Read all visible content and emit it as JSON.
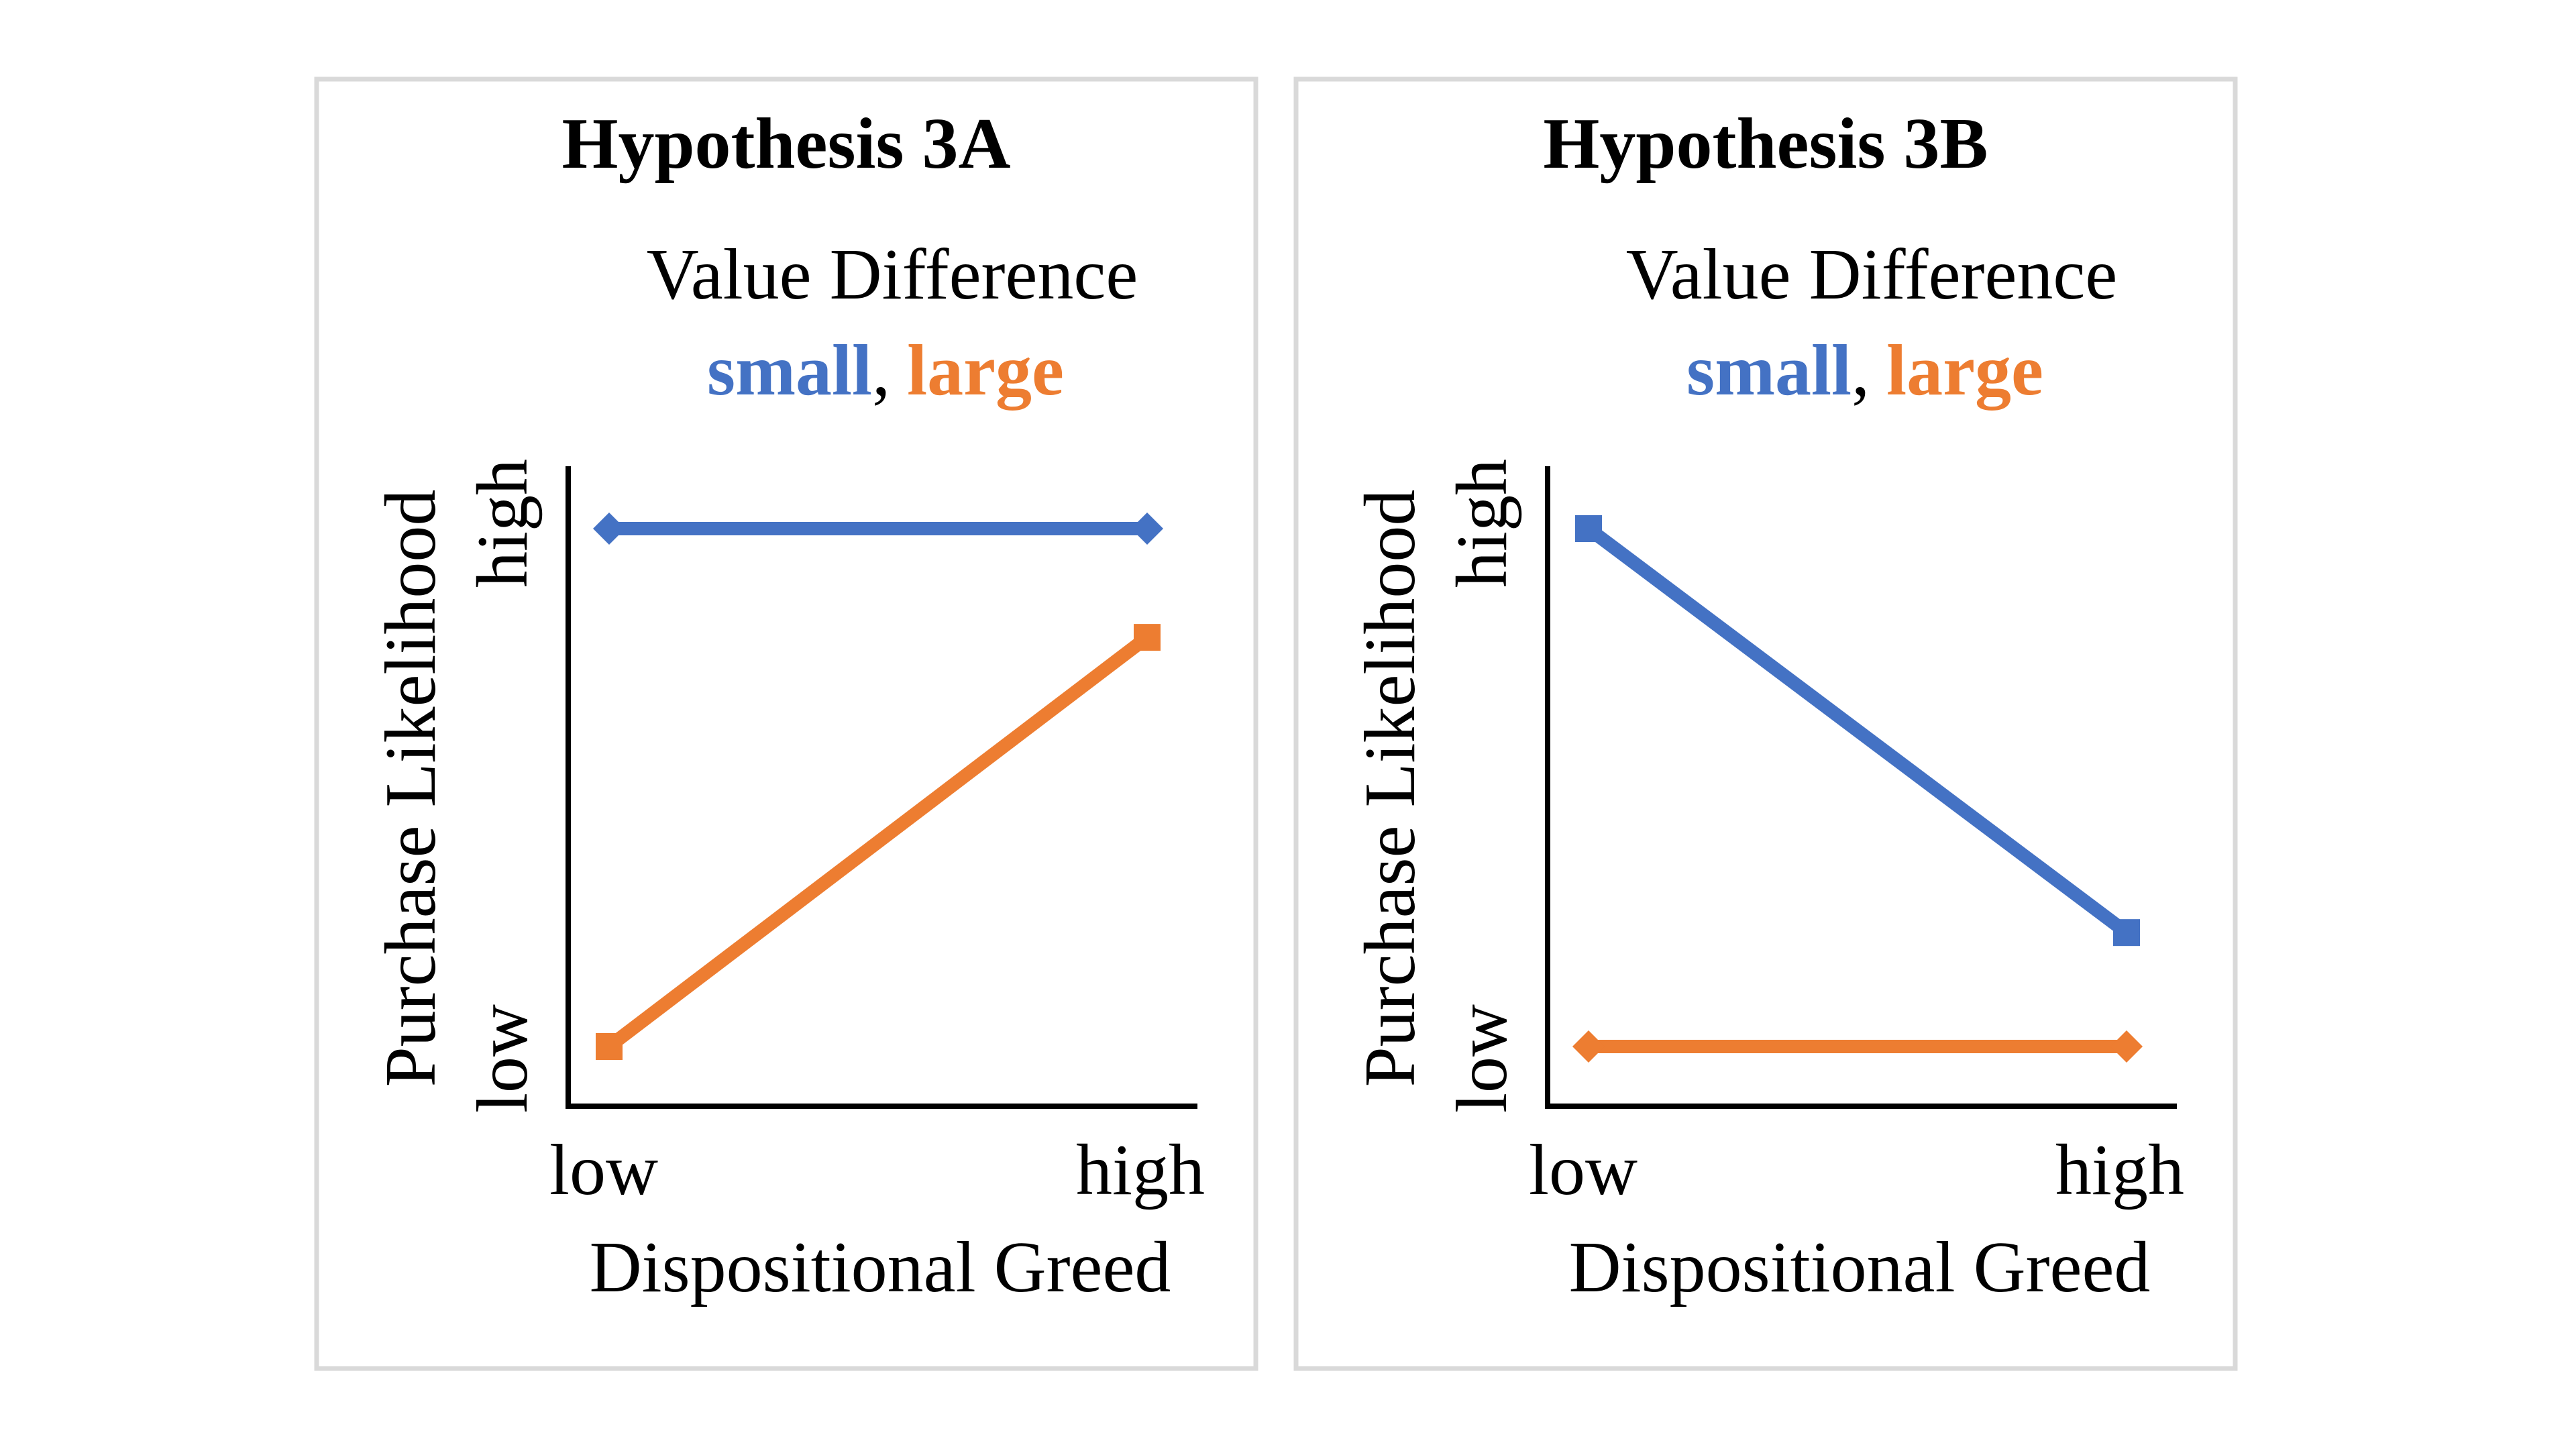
{
  "colors": {
    "small": "#4472C4",
    "large": "#ED7D31"
  },
  "chart_data": [
    {
      "type": "line",
      "title": "Hypothesis 3A",
      "legend_title": "Value Difference",
      "legend_placement": "top",
      "x": [
        "low",
        "high"
      ],
      "xlabel": "Dispositional Greed",
      "ylabel": "Purchase Likelihood",
      "yticks": [
        "low",
        "high"
      ],
      "ylim": [
        0,
        1
      ],
      "grid": false,
      "series": [
        {
          "name": "small",
          "color": "#4472C4",
          "marker": "diamond",
          "values": [
            1.0,
            1.0
          ]
        },
        {
          "name": "large",
          "color": "#ED7D31",
          "marker": "square",
          "values": [
            0.0,
            0.79
          ]
        }
      ]
    },
    {
      "type": "line",
      "title": "Hypothesis 3B",
      "legend_title": "Value Difference",
      "legend_placement": "top",
      "x": [
        "low",
        "high"
      ],
      "xlabel": "Dispositional Greed",
      "ylabel": "Purchase Likelihood",
      "yticks": [
        "low",
        "high"
      ],
      "ylim": [
        0,
        1
      ],
      "grid": false,
      "series": [
        {
          "name": "small",
          "color": "#4472C4",
          "marker": "square",
          "values": [
            1.0,
            0.22
          ]
        },
        {
          "name": "large",
          "color": "#ED7D31",
          "marker": "diamond",
          "values": [
            0.0,
            0.0
          ]
        }
      ]
    }
  ],
  "legend_separator": ","
}
